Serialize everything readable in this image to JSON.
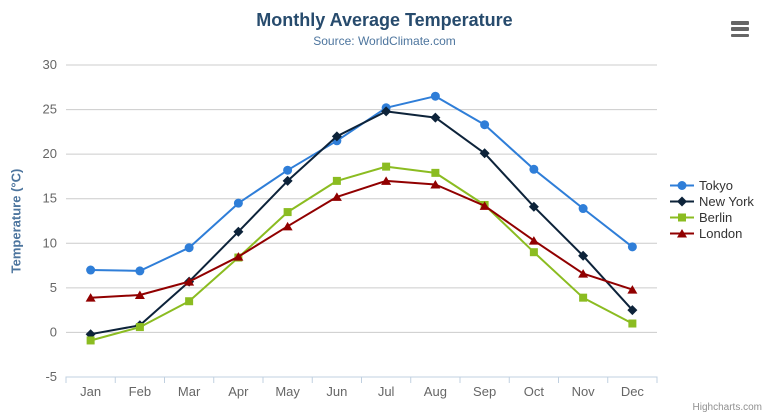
{
  "header": {
    "title": "Monthly Average Temperature",
    "subtitle": "Source: WorldClimate.com"
  },
  "chart_data": {
    "type": "line",
    "title": "Monthly Average Temperature",
    "subtitle": "Source: WorldClimate.com",
    "categories": [
      "Jan",
      "Feb",
      "Mar",
      "Apr",
      "May",
      "Jun",
      "Jul",
      "Aug",
      "Sep",
      "Oct",
      "Nov",
      "Dec"
    ],
    "series": [
      {
        "name": "Tokyo",
        "color": "#2f7ed8",
        "marker": "circle",
        "values": [
          7.0,
          6.9,
          9.5,
          14.5,
          18.2,
          21.5,
          25.2,
          26.5,
          23.3,
          18.3,
          13.9,
          9.6
        ]
      },
      {
        "name": "New York",
        "color": "#0d233a",
        "marker": "diamond",
        "values": [
          -0.2,
          0.8,
          5.7,
          11.3,
          17.0,
          22.0,
          24.8,
          24.1,
          20.1,
          14.1,
          8.6,
          2.5
        ]
      },
      {
        "name": "Berlin",
        "color": "#8bbc21",
        "marker": "square",
        "values": [
          -0.9,
          0.6,
          3.5,
          8.4,
          13.5,
          17.0,
          18.6,
          17.9,
          14.3,
          9.0,
          3.9,
          1.0
        ]
      },
      {
        "name": "London",
        "color": "#910000",
        "marker": "triangle",
        "values": [
          3.9,
          4.2,
          5.7,
          8.5,
          11.9,
          15.2,
          17.0,
          16.6,
          14.2,
          10.3,
          6.6,
          4.8
        ]
      }
    ],
    "xlabel": "",
    "ylabel": "Temperature (°C)",
    "ylim": [
      -5,
      30
    ],
    "ytick_interval": 5,
    "grid": true,
    "legend_position": "right"
  },
  "colors": {
    "grid_line": "#cccccc",
    "axis_line": "#c0d0e0",
    "tick_label": "#666666",
    "title": "#274b6d",
    "subtitle": "#4d759e",
    "legend_text": "#333333",
    "menu_icon": "#666666",
    "credits_text": "#909090"
  },
  "credits": {
    "label": "Highcharts.com"
  }
}
